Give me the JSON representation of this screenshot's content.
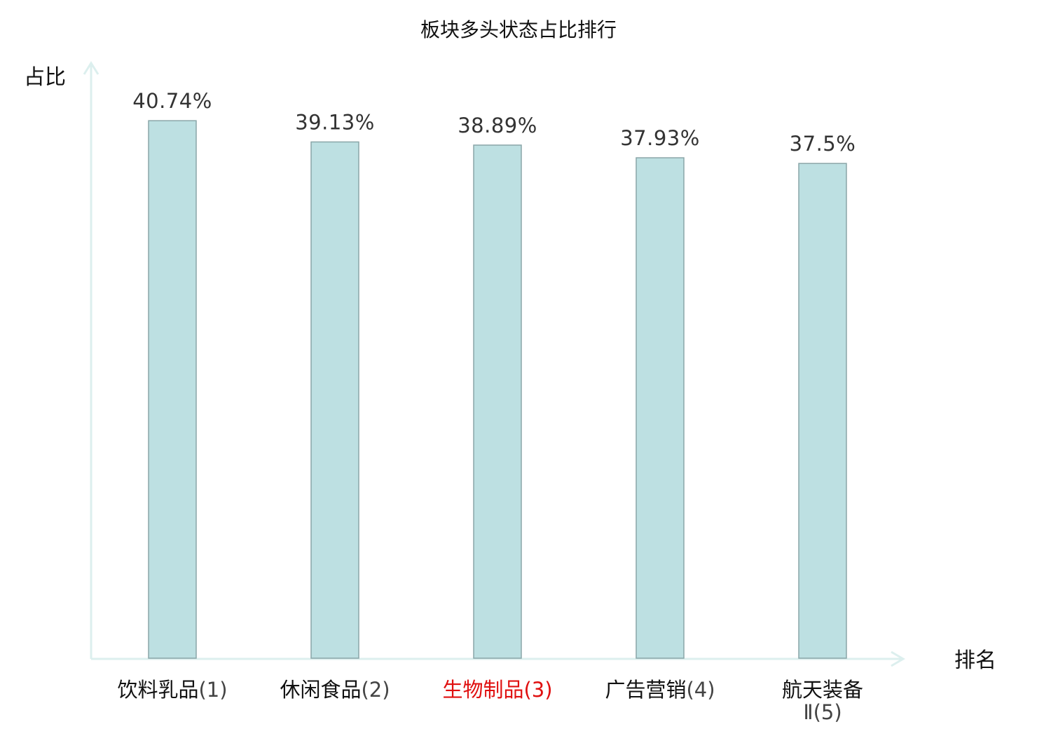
{
  "chart_data": {
    "type": "bar",
    "title": "板块多头状态占比排行",
    "ylabel": "占比",
    "xlabel": "排名",
    "ylim": [
      0,
      45
    ],
    "grid": false,
    "categories": [
      "饮料乳品",
      "休闲食品",
      "生物制品",
      "广告营销",
      "航天装备Ⅱ"
    ],
    "ranks": [
      "(1)",
      "(2)",
      "(3)",
      "(4)",
      "(5)"
    ],
    "values": [
      40.74,
      39.13,
      38.89,
      37.93,
      37.5
    ],
    "value_labels": [
      "40.74%",
      "39.13%",
      "38.89%",
      "37.93%",
      "37.5%"
    ],
    "highlight_index": 2,
    "colors": {
      "bar_fill": "#bde0e2",
      "bar_stroke": "#8aa6a8",
      "axis": "#dcefee",
      "label": "#111111",
      "value_label": "#333333",
      "rank": "#444444",
      "highlight": "#e01010"
    }
  }
}
